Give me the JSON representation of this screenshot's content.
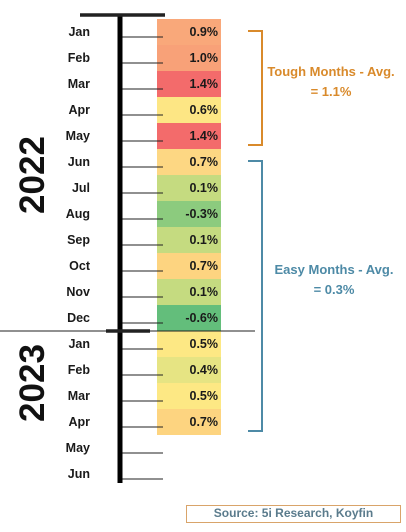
{
  "chart_data": {
    "type": "table",
    "years": [
      {
        "label": "2022",
        "months": [
          "Jan",
          "Feb",
          "Mar",
          "Apr",
          "May",
          "Jun",
          "Jul",
          "Aug",
          "Sep",
          "Oct",
          "Nov",
          "Dec"
        ]
      },
      {
        "label": "2023",
        "months": [
          "Jan",
          "Feb",
          "Mar",
          "Apr",
          "May",
          "Jun"
        ]
      }
    ],
    "rows": [
      {
        "month": "Jan",
        "year": "2022",
        "value": 0.9,
        "label": "0.9%",
        "color": "#f9a87a"
      },
      {
        "month": "Feb",
        "year": "2022",
        "value": 1.0,
        "label": "1.0%",
        "color": "#f8a178"
      },
      {
        "month": "Mar",
        "year": "2022",
        "value": 1.4,
        "label": "1.4%",
        "color": "#f36b6b"
      },
      {
        "month": "Apr",
        "year": "2022",
        "value": 0.6,
        "label": "0.6%",
        "color": "#fde684"
      },
      {
        "month": "May",
        "year": "2022",
        "value": 1.4,
        "label": "1.4%",
        "color": "#f36b6b"
      },
      {
        "month": "Jun",
        "year": "2022",
        "value": 0.7,
        "label": "0.7%",
        "color": "#fdd783"
      },
      {
        "month": "Jul",
        "year": "2022",
        "value": 0.1,
        "label": "0.1%",
        "color": "#c5db80"
      },
      {
        "month": "Aug",
        "year": "2022",
        "value": -0.3,
        "label": "-0.3%",
        "color": "#8ccb7e"
      },
      {
        "month": "Sep",
        "year": "2022",
        "value": 0.1,
        "label": "0.1%",
        "color": "#c5db80"
      },
      {
        "month": "Oct",
        "year": "2022",
        "value": 0.7,
        "label": "0.7%",
        "color": "#fdd480"
      },
      {
        "month": "Nov",
        "year": "2022",
        "value": 0.1,
        "label": "0.1%",
        "color": "#c5db80"
      },
      {
        "month": "Dec",
        "year": "2022",
        "value": -0.6,
        "label": "-0.6%",
        "color": "#63be7b"
      },
      {
        "month": "Jan",
        "year": "2023",
        "value": 0.5,
        "label": "0.5%",
        "color": "#fde884"
      },
      {
        "month": "Feb",
        "year": "2023",
        "value": 0.4,
        "label": "0.4%",
        "color": "#e6e483"
      },
      {
        "month": "Mar",
        "year": "2023",
        "value": 0.5,
        "label": "0.5%",
        "color": "#fde884"
      },
      {
        "month": "Apr",
        "year": "2023",
        "value": 0.7,
        "label": "0.7%",
        "color": "#fdd480"
      },
      {
        "month": "May",
        "year": "2023",
        "value": null,
        "label": "",
        "color": ""
      },
      {
        "month": "Jun",
        "year": "2023",
        "value": null,
        "label": "",
        "color": ""
      }
    ],
    "groups": [
      {
        "name": "tough",
        "text": "Tough Months - Avg. = 1.1%",
        "from": "Jan 2022",
        "to": "May 2022",
        "color": "#d98a2b"
      },
      {
        "name": "easy",
        "text": "Easy Months - Avg. = 0.3%",
        "from": "Jun 2022",
        "to": "Apr 2023",
        "color": "#4d8aa6"
      }
    ]
  },
  "annotations": {
    "tough": {
      "line1": "Tough Months - Avg.",
      "line2": "= 1.1%",
      "color": "#d98a2b"
    },
    "easy": {
      "line1": "Easy Months - Avg.",
      "line2": "= 0.3%",
      "color": "#4d8aa6"
    }
  },
  "source": {
    "text": "Source: 5i Research, Koyfin",
    "color": "#5a7b8c"
  }
}
